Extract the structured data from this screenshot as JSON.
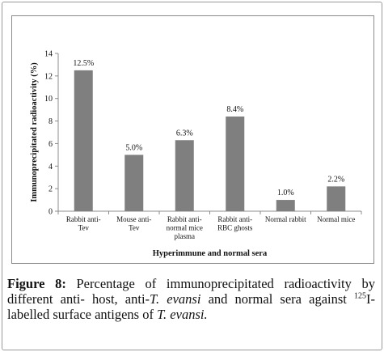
{
  "chart_data": {
    "type": "bar",
    "categories": [
      [
        "Rabbit anti-",
        "Tev"
      ],
      [
        "Mouse anti-",
        "Tev"
      ],
      [
        "Rabbit anti-",
        "normal mice",
        "plasma"
      ],
      [
        "Rabbit anti-",
        "RBC ghosts"
      ],
      [
        "Normal rabbit"
      ],
      [
        "Normal mice"
      ]
    ],
    "values": [
      12.5,
      5.0,
      6.3,
      8.4,
      1.0,
      2.2
    ],
    "data_labels": [
      "12.5%",
      "5.0%",
      "6.3%",
      "8.4%",
      "1.0%",
      "2.2%"
    ],
    "ylim": [
      0,
      14
    ],
    "yticks": [
      0,
      2,
      4,
      6,
      8,
      10,
      12,
      14
    ],
    "xlabel": "Hyperimmune and normal sera",
    "ylabel": "Immunoprecipitated radioactivity (%)",
    "bar_color": "#7f7f7f",
    "grid": false,
    "legend": "none"
  },
  "caption": {
    "label": "Figure 8:",
    "text_1": "Percentage of immunoprecipitated radioactivity by different anti- host, anti-",
    "italic_1": "T. evansi",
    "text_2": "and normal sera against",
    "sup": "125",
    "text_3": "I-labelled surface antigens of",
    "italic_2": "T. evansi."
  }
}
